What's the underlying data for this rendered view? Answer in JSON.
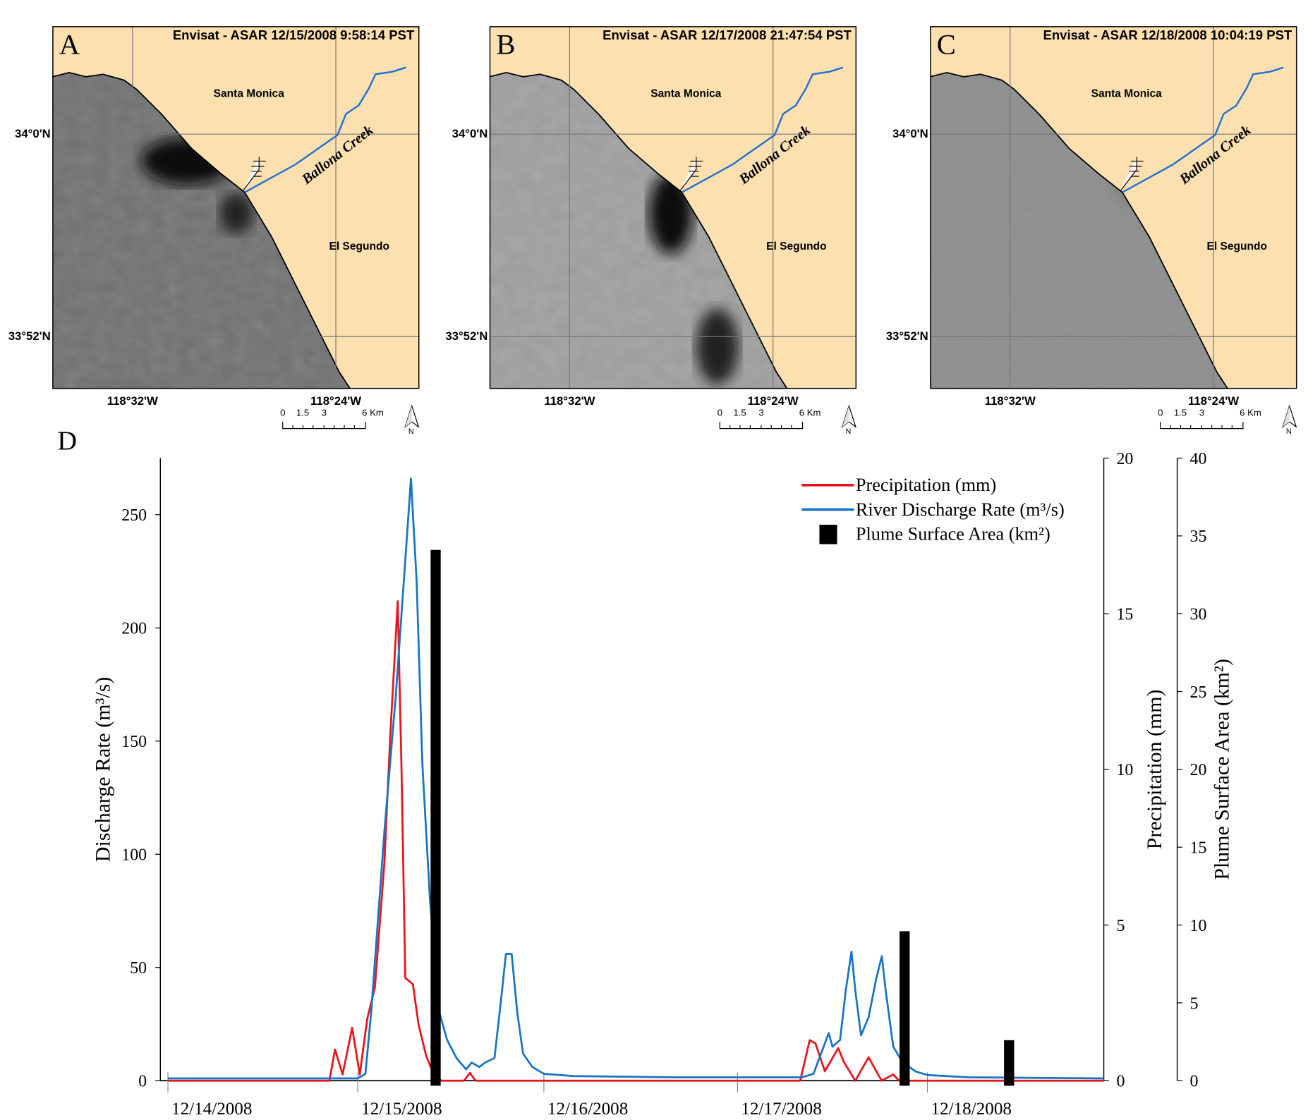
{
  "maps": [
    {
      "letter": "A",
      "title": "Envisat - ASAR 12/15/2008 9:58:14 PST",
      "plume": "small"
    },
    {
      "letter": "B",
      "title": "Envisat - ASAR 12/17/2008 21:47:54 PST",
      "plume": "large"
    },
    {
      "letter": "C",
      "title": "Envisat - ASAR 12/18/2008 10:04:19 PST",
      "plume": "none"
    }
  ],
  "map_labels": {
    "santa_monica": "Santa Monica",
    "el_segundo": "El Segundo",
    "creek": "Ballona Creek",
    "lat_top": "34°0'N",
    "lat_bottom": "33°52'N",
    "lon_left": "118°32'W",
    "lon_right": "118°24'W",
    "scale": [
      "0",
      "1.5",
      "3",
      "6 Km"
    ],
    "north": "N"
  },
  "colors": {
    "land": "#FCE0B0",
    "creek": "#1f6fd1",
    "precip": "#e8141c",
    "discharge": "#1874c4",
    "plume": "#000000"
  },
  "panel_d_label": "D",
  "chart_data": {
    "type": "line",
    "x_unit": "days since 12/14/2008 00:00",
    "xlim": [
      0,
      4.93
    ],
    "x_ticks": [
      {
        "value": 0,
        "label": "12/14/2008"
      },
      {
        "value": 1,
        "label": "12/15/2008"
      },
      {
        "value": 1.98,
        "label": "12/16/2008"
      },
      {
        "value": 3.0,
        "label": "12/17/2008"
      },
      {
        "value": 4.0,
        "label": "12/18/2008"
      }
    ],
    "axes": [
      {
        "id": "discharge",
        "side": "left",
        "label": "Discharge Rate (m³/s)",
        "ylim": [
          0,
          275
        ],
        "ticks": [
          0,
          50,
          100,
          150,
          200,
          250
        ]
      },
      {
        "id": "precip",
        "side": "right",
        "label": "Precipitation (mm)",
        "ylim": [
          0,
          20
        ],
        "ticks": [
          0,
          5,
          10,
          15,
          20
        ]
      },
      {
        "id": "plume",
        "side": "right-outer",
        "label": "Plume Surface Area (km²)",
        "ylim": [
          0,
          40
        ],
        "ticks": [
          0,
          5,
          10,
          15,
          20,
          25,
          30,
          35,
          40
        ]
      }
    ],
    "legend_position": "top-right",
    "series": [
      {
        "name": "Precipitation (mm)",
        "type": "line",
        "axis": "precip",
        "color": "#e8141c",
        "points": [
          [
            0,
            0
          ],
          [
            0.85,
            0
          ],
          [
            0.88,
            1.0
          ],
          [
            0.92,
            0.2
          ],
          [
            0.97,
            1.7
          ],
          [
            1.01,
            0.2
          ],
          [
            1.05,
            2.0
          ],
          [
            1.09,
            3.0
          ],
          [
            1.14,
            7
          ],
          [
            1.17,
            11
          ],
          [
            1.21,
            15.4
          ],
          [
            1.23,
            10
          ],
          [
            1.25,
            3.3
          ],
          [
            1.29,
            3.1
          ],
          [
            1.32,
            1.8
          ],
          [
            1.36,
            0.8
          ],
          [
            1.4,
            0.2
          ],
          [
            1.44,
            0
          ],
          [
            1.56,
            0
          ],
          [
            1.59,
            0.25
          ],
          [
            1.62,
            0
          ],
          [
            3.33,
            0
          ],
          [
            3.38,
            1.3
          ],
          [
            3.41,
            1.2
          ],
          [
            3.46,
            0.3
          ],
          [
            3.53,
            1.05
          ],
          [
            3.56,
            0.6
          ],
          [
            3.62,
            0
          ],
          [
            3.69,
            0.75
          ],
          [
            3.74,
            0.2
          ],
          [
            3.76,
            0
          ],
          [
            3.82,
            0.2
          ],
          [
            3.85,
            0
          ],
          [
            4.93,
            0
          ]
        ]
      },
      {
        "name": "River Discharge Rate (m³/s)",
        "type": "line",
        "axis": "discharge",
        "color": "#1874c4",
        "points": [
          [
            0,
            1
          ],
          [
            1.0,
            1
          ],
          [
            1.04,
            3
          ],
          [
            1.07,
            30
          ],
          [
            1.14,
            110
          ],
          [
            1.2,
            170
          ],
          [
            1.25,
            230
          ],
          [
            1.28,
            266
          ],
          [
            1.31,
            220
          ],
          [
            1.34,
            140
          ],
          [
            1.38,
            80
          ],
          [
            1.43,
            30
          ],
          [
            1.47,
            18
          ],
          [
            1.52,
            10
          ],
          [
            1.57,
            5
          ],
          [
            1.6,
            8
          ],
          [
            1.64,
            6
          ],
          [
            1.67,
            8
          ],
          [
            1.72,
            10
          ],
          [
            1.76,
            40
          ],
          [
            1.78,
            56
          ],
          [
            1.81,
            56
          ],
          [
            1.84,
            30
          ],
          [
            1.87,
            12
          ],
          [
            1.92,
            6
          ],
          [
            1.98,
            3
          ],
          [
            2.14,
            2
          ],
          [
            2.67,
            1.5
          ],
          [
            3.34,
            1.5
          ],
          [
            3.4,
            3
          ],
          [
            3.44,
            12
          ],
          [
            3.48,
            21
          ],
          [
            3.5,
            15
          ],
          [
            3.54,
            18
          ],
          [
            3.57,
            40
          ],
          [
            3.6,
            57
          ],
          [
            3.62,
            40
          ],
          [
            3.65,
            20
          ],
          [
            3.69,
            28
          ],
          [
            3.73,
            45
          ],
          [
            3.76,
            55
          ],
          [
            3.78,
            40
          ],
          [
            3.82,
            15
          ],
          [
            3.87,
            8
          ],
          [
            3.94,
            4
          ],
          [
            4.0,
            2.5
          ],
          [
            4.22,
            1.5
          ],
          [
            4.93,
            1
          ]
        ]
      },
      {
        "name": "Plume Surface Area (km²)",
        "type": "bar",
        "axis": "plume",
        "color": "#000000",
        "points": [
          [
            1.41,
            34.1
          ],
          [
            3.88,
            9.6
          ],
          [
            4.43,
            2.6
          ]
        ]
      }
    ]
  }
}
